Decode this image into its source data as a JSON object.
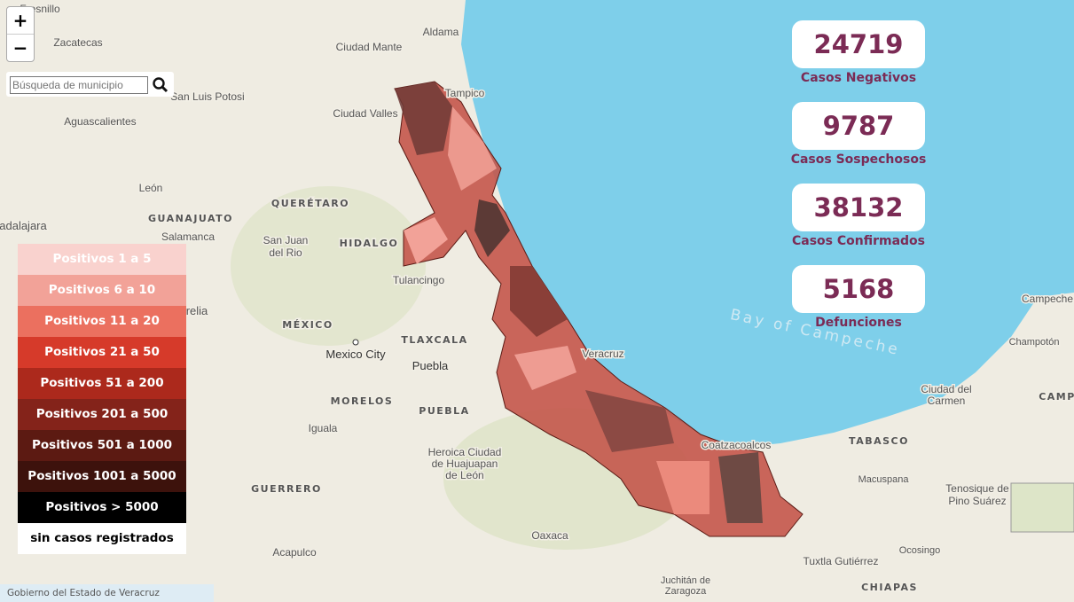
{
  "controls": {
    "zoom_in": "+",
    "zoom_out": "−",
    "search_placeholder": "Búsqueda de municipio"
  },
  "stats": [
    {
      "value": 24719,
      "label": "Casos Negativos"
    },
    {
      "value": 9787,
      "label": "Casos Sospechosos"
    },
    {
      "value": 38132,
      "label": "Casos Confirmados"
    },
    {
      "value": 5168,
      "label": "Defunciones"
    }
  ],
  "legend": [
    {
      "label": "Positivos 1 a 5",
      "color": "#f9d2ce"
    },
    {
      "label": "Positivos 6 a 10",
      "color": "#f2a298"
    },
    {
      "label": "Positivos 11 a 20",
      "color": "#eb705f"
    },
    {
      "label": "Positivos 21 a 50",
      "color": "#d63a2a"
    },
    {
      "label": "Positivos 51 a 200",
      "color": "#ac291c"
    },
    {
      "label": "Positivos 201 a 500",
      "color": "#84231a"
    },
    {
      "label": "Positivos 501 a 1000",
      "color": "#5c1a12"
    },
    {
      "label": "Positivos 1001 a 5000",
      "color": "#3d120c"
    },
    {
      "label": "Positivos > 5000",
      "color": "#000000"
    },
    {
      "label": "sin casos registrados",
      "color": "#ffffff"
    }
  ],
  "map": {
    "labels": [
      "Fresnillo",
      "Zacatecas",
      "Aldama",
      "Ciudad Mante",
      "San Luis Potosi",
      "Tampico",
      "Aguascalientes",
      "Ciudad Valles",
      "León",
      "GUANAJUATO",
      "QUERÉTARO",
      "HIDALGO",
      "Salamanca",
      "San Juan",
      "del Rio",
      "Tulancingo",
      "MÉXICO",
      "TLAXCALA",
      "Mexico City",
      "Puebla",
      "Veracruz",
      "MORELOS",
      "PUEBLA",
      "Iguala",
      "Heroica Ciudad",
      "de Huajuapan",
      "de León",
      "GUERRERO",
      "Coatzacoalcos",
      "TABASCO",
      "Ciudad del",
      "Carmen",
      "Champotón",
      "Campeche",
      "CAMP",
      "Macuspana",
      "Tenosique de",
      "Pino Suárez",
      "Oaxaca",
      "Acapulco",
      "Juchitán de",
      "Zaragoza",
      "Tuxtla Gutiérrez",
      "Ocosingo",
      "CHIAPAS",
      "Bay of Campeche",
      "adalajara",
      "relia"
    ],
    "attribution": "Gobierno del Estado de Veracruz"
  }
}
